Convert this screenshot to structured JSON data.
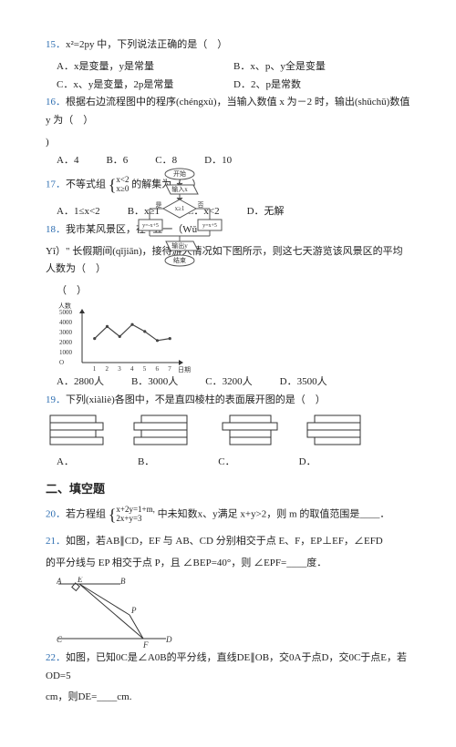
{
  "q15": {
    "num": "15．",
    "text": "x²=2py 中，下列说法正确的是（　）",
    "optA": "A．x是变量，y是常量",
    "optB": "B．x、p、y全是变量",
    "optC": "C．x、y是变量，2p是常量",
    "optD": "D．2、p是常数"
  },
  "q16": {
    "num": "16．",
    "text": "根据右边流程图中的程序(chéngxù)，当输入数值 x 为－2 时，输出(shūchū)数值 y 为（　）",
    "optA": "A．4",
    "optB": "B．6",
    "optC": "C．8",
    "optD": "D．10"
  },
  "q17": {
    "num": "17．",
    "text": "不等式组",
    "frac_top": "x<2",
    "frac_bot": "x≥0",
    "tail": "的解集为（　）",
    "optA": "A．1≤x<2",
    "optB": "B．x≥1",
    "optC": "C．x<2",
    "optD": "D．无解"
  },
  "q18": {
    "num": "18．",
    "text": "我市某风景区，在 \"五一（Wǔ-",
    "line2": "Yī）\" 长假期间(qījiān)，接待游人情况如下图所示，则这七天游览该风景区的平均人数为（　）",
    "optA": "A．2800人",
    "optB": "B．3000人",
    "optC": "C．3200人",
    "optD": "D．3500人",
    "chart": {
      "title": "人数",
      "ylabels": [
        "5000",
        "4000",
        "3000",
        "2000",
        "1000",
        "O"
      ],
      "xlabel": "日期",
      "points": [
        [
          1,
          2400
        ],
        [
          2,
          3600
        ],
        [
          3,
          2600
        ],
        [
          4,
          3800
        ],
        [
          5,
          3100
        ],
        [
          6,
          2200
        ],
        [
          7,
          2400
        ]
      ],
      "stroke": "#444"
    }
  },
  "q19": {
    "num": "19．",
    "text": "下列(xiàliè)各图中，不是直四棱柱的表面展开图的是（　）",
    "optA": "A．",
    "optB": "B．",
    "optC": "C．",
    "optD": "D．"
  },
  "section2": "二、填空题",
  "q20": {
    "num": "20．",
    "pre": "若方程组",
    "eq1": "x+2y=1+m,",
    "eq2": "2x+y=3",
    "post": "中未知数x、y满足 x+y>2，则 m 的取值范围是____．"
  },
  "q21": {
    "num": "21．",
    "line1": "如图，若AB∥CD，EF 与 AB、CD 分别相交于点 E、F，EP⊥EF，∠EFD",
    "line2": "的平分线与 EP 相交于点 P，且 ∠BEP=40°，则 ∠EPF=____度．"
  },
  "q22": {
    "num": "22．",
    "line1": "如图，已知0C是∠A0B的平分线，直线DE∥OB，交0A于点D，交0C于点E，若OD=5",
    "line2": "cm，则DE=____cm."
  },
  "flowchart": {
    "start": "开始",
    "in": "输入x",
    "cond": "x≥1",
    "yes": "是",
    "no": "否",
    "box1": "y=-x+5",
    "box2": "y=x+5",
    "out": "输出y",
    "end": "结束"
  }
}
